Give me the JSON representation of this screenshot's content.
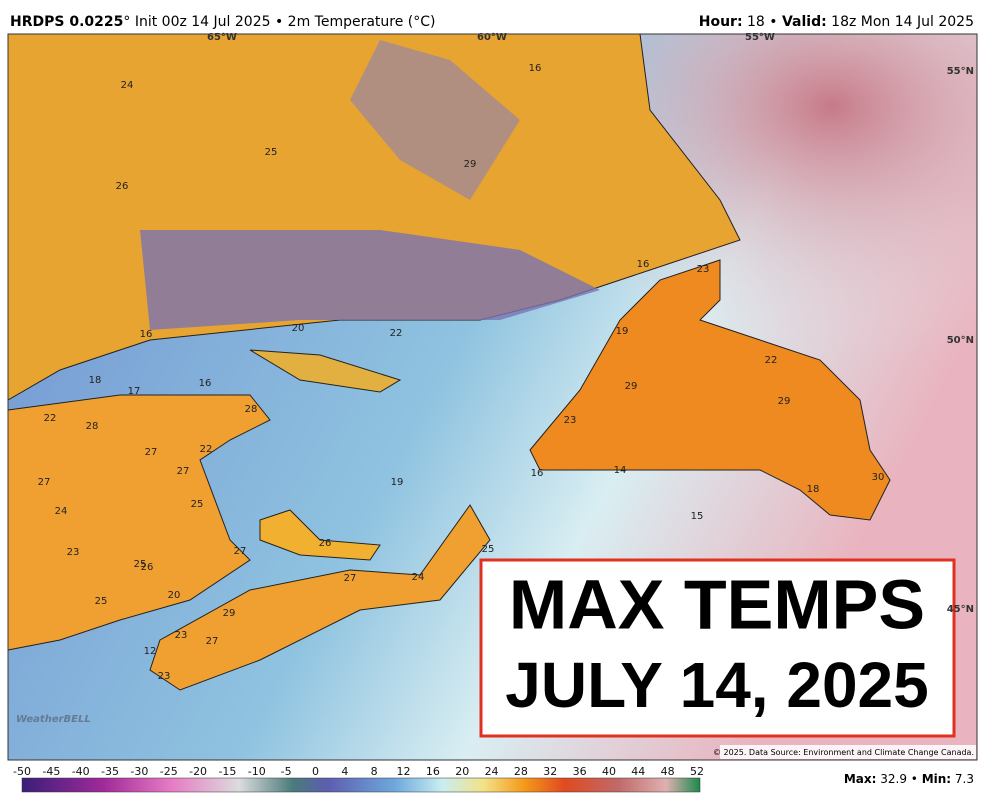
{
  "header": {
    "model": "HRDPS 0.0225",
    "init": "° Init 00z 14 Jul 2025 • 2m Temperature (°C)",
    "hour_label": "Hour:",
    "hour": " 18 • ",
    "valid_label": "Valid:",
    "valid": " 18z Mon 14 Jul 2025"
  },
  "grid_labels": [
    "65°W",
    "60°W",
    "55°W",
    "55°N",
    "50°N",
    "45°N"
  ],
  "temperature_labels": [
    "24",
    "25",
    "26",
    "29",
    "16",
    "20",
    "22",
    "16",
    "18",
    "17",
    "16",
    "22",
    "28",
    "28",
    "27",
    "22",
    "27",
    "27",
    "24",
    "25",
    "23",
    "25",
    "26",
    "27",
    "26",
    "27",
    "20",
    "25",
    "29",
    "23",
    "27",
    "12",
    "23",
    "19",
    "24",
    "25",
    "19",
    "29",
    "23",
    "16",
    "14",
    "15",
    "22",
    "29",
    "18",
    "30",
    "23",
    "16"
  ],
  "overlay": {
    "line1": "MAX TEMPS",
    "line2": "JULY 14, 2025"
  },
  "logo": "WeatherBELL",
  "copyright": "© 2025. Data Source: Environment and Climate Change Canada.",
  "colorbar": {
    "labels": [
      "-50",
      "-45",
      "-40",
      "-35",
      "-30",
      "-25",
      "-20",
      "-15",
      "-10",
      "-5",
      "0",
      "4",
      "8",
      "12",
      "16",
      "20",
      "24",
      "28",
      "32",
      "36",
      "40",
      "44",
      "48",
      "52"
    ]
  },
  "stats": {
    "max_label": "Max:",
    "max": " 32.9 • ",
    "min_label": "Min:",
    "min": " 7.3"
  }
}
